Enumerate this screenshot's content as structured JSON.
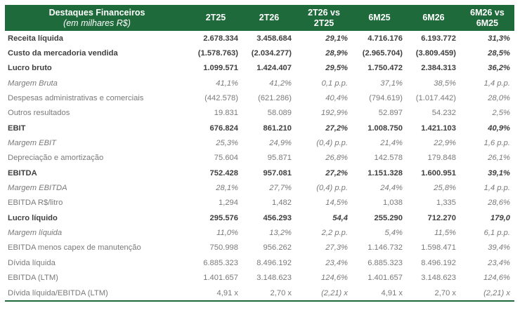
{
  "header": {
    "title": "Destaques Financeiros",
    "subtitle": "(em milhares R$)",
    "columns": [
      "2T25",
      "2T26",
      "2T26 vs 2T25",
      "6M25",
      "6M26",
      "6M26 vs 6M25"
    ]
  },
  "rows": [
    {
      "label": "Receita líquida",
      "style": "bold",
      "values": [
        "2.678.334",
        "3.458.684",
        "29,1%",
        "4.716.176",
        "6.193.772",
        "31,3%"
      ]
    },
    {
      "label": "Custo da mercadoria vendida",
      "style": "bold",
      "values": [
        "(1.578.763)",
        "(2.034.277)",
        "28,9%",
        "(2.965.704)",
        "(3.809.459)",
        "28,5%"
      ]
    },
    {
      "label": "Lucro bruto",
      "style": "bold",
      "values": [
        "1.099.571",
        "1.424.407",
        "29,5%",
        "1.750.472",
        "2.384.313",
        "36,2%"
      ]
    },
    {
      "label": "Margem Bruta",
      "style": "italic",
      "values": [
        "41,1%",
        "41,2%",
        "0,1 p.p.",
        "37,1%",
        "38,5%",
        "1,4 p.p."
      ]
    },
    {
      "label": "Despesas administrativas e comerciais",
      "style": "normal",
      "values": [
        "(442.578)",
        "(621.286)",
        "40,4%",
        "(794.619)",
        "(1.017.442)",
        "28,0%"
      ]
    },
    {
      "label": "Outros resultados",
      "style": "normal",
      "values": [
        "19.831",
        "58.089",
        "192,9%",
        "52.897",
        "54.232",
        "2,5%"
      ]
    },
    {
      "label": "EBIT",
      "style": "bold",
      "values": [
        "676.824",
        "861.210",
        "27,2%",
        "1.008.750",
        "1.421.103",
        "40,9%"
      ]
    },
    {
      "label": "Margem EBIT",
      "style": "italic",
      "values": [
        "25,3%",
        "24,9%",
        "(0,4) p.p.",
        "21,4%",
        "22,9%",
        "1,6 p.p."
      ]
    },
    {
      "label": "Depreciação e amortização",
      "style": "normal",
      "values": [
        "75.604",
        "95.871",
        "26,8%",
        "142.578",
        "179.848",
        "26,1%"
      ]
    },
    {
      "label": "EBITDA",
      "style": "bold",
      "values": [
        "752.428",
        "957.081",
        "27,2%",
        "1.151.328",
        "1.600.951",
        "39,1%"
      ]
    },
    {
      "label": "Margem EBITDA",
      "style": "italic",
      "values": [
        "28,1%",
        "27,7%",
        "(0,4) p.p.",
        "24,4%",
        "25,8%",
        "1,4 p.p."
      ]
    },
    {
      "label": "EBITDA R$/litro",
      "style": "normal",
      "values": [
        "1,294",
        "1,482",
        "14,5%",
        "1,038",
        "1,335",
        "28,6%"
      ]
    },
    {
      "label": "Lucro líquido",
      "style": "bold",
      "values": [
        "295.576",
        "456.293",
        "54,4",
        "255.290",
        "712.270",
        "179,0"
      ]
    },
    {
      "label": "Margem líquida",
      "style": "italic",
      "values": [
        "11,0%",
        "13,2%",
        "2,2 p.p.",
        "5,4%",
        "11,5%",
        "6,1 p.p."
      ]
    },
    {
      "label": "EBITDA menos capex de manutenção",
      "style": "normal",
      "values": [
        "750.998",
        "956.262",
        "27,3%",
        "1.146.732",
        "1.598.471",
        "39,4%"
      ]
    },
    {
      "label": "Dívida líquida",
      "style": "normal",
      "values": [
        "6.885.323",
        "8.496.192",
        "23,4%",
        "6.885.323",
        "8.496.192",
        "23,4%"
      ]
    },
    {
      "label": "EBITDA (LTM)",
      "style": "normal",
      "values": [
        "1.401.657",
        "3.148.623",
        "124,6%",
        "1.401.657",
        "3.148.623",
        "124,6%"
      ]
    },
    {
      "label": "Dívida líquida/EBITDA (LTM)",
      "style": "normal",
      "values": [
        "4,91 x",
        "2,70 x",
        "(2,21) x",
        "4,91 x",
        "2,70 x",
        "(2,21) x"
      ]
    }
  ],
  "colors": {
    "header_bg": "#1f6a3a",
    "header_text": "#ffffff",
    "bold_text": "#3f3f3f",
    "normal_text": "#7a7a7a"
  }
}
